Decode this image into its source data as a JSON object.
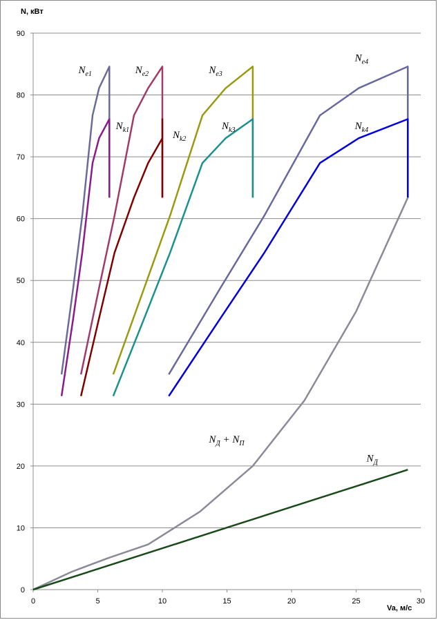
{
  "chart_data": {
    "type": "line",
    "ylabel": "N, кВт",
    "xlabel": "Va, м/с",
    "xlim": [
      0,
      30
    ],
    "ylim": [
      0,
      90
    ],
    "x_ticks": [
      "0",
      "5",
      "10",
      "15",
      "20",
      "25",
      "30"
    ],
    "y_ticks": [
      "0",
      "10",
      "20",
      "30",
      "40",
      "50",
      "60",
      "70",
      "80",
      "90"
    ],
    "grid": "horizontal",
    "series": [
      {
        "name": "Ne1",
        "color": "#6b6b9a",
        "points": [
          [
            2.2,
            34.8
          ],
          [
            3.1,
            48.8
          ],
          [
            3.8,
            60.5
          ],
          [
            4.6,
            76.7
          ],
          [
            5.1,
            81.1
          ],
          [
            5.9,
            84.6
          ],
          [
            5.9,
            63.4
          ]
        ]
      },
      {
        "name": "Nk1",
        "color": "#8b1a8b",
        "points": [
          [
            2.2,
            31.3
          ],
          [
            3.1,
            43.9
          ],
          [
            3.8,
            54.5
          ],
          [
            4.6,
            69.0
          ],
          [
            5.1,
            73.0
          ],
          [
            5.9,
            76.1
          ],
          [
            5.9,
            63.4
          ]
        ]
      },
      {
        "name": "Ne2",
        "color": "#a03a6a",
        "points": [
          [
            3.7,
            34.8
          ],
          [
            5.1,
            48.8
          ],
          [
            6.3,
            60.5
          ],
          [
            7.8,
            76.7
          ],
          [
            8.9,
            81.1
          ],
          [
            10.0,
            84.6
          ],
          [
            10.0,
            63.4
          ]
        ]
      },
      {
        "name": "Nk2",
        "color": "#800000",
        "points": [
          [
            3.7,
            31.3
          ],
          [
            5.1,
            43.9
          ],
          [
            6.3,
            54.5
          ],
          [
            7.8,
            63.4
          ],
          [
            8.9,
            69.0
          ],
          [
            10.0,
            73.0
          ],
          [
            10.0,
            76.1
          ],
          [
            10.0,
            63.4
          ]
        ]
      },
      {
        "name": "Ne3",
        "color": "#9a9a10",
        "points": [
          [
            6.2,
            34.8
          ],
          [
            8.6,
            48.8
          ],
          [
            10.6,
            60.5
          ],
          [
            13.1,
            76.7
          ],
          [
            14.9,
            81.1
          ],
          [
            17.0,
            84.6
          ],
          [
            17.0,
            63.4
          ]
        ]
      },
      {
        "name": "Nk3",
        "color": "#1a9090",
        "points": [
          [
            6.2,
            31.3
          ],
          [
            8.6,
            43.9
          ],
          [
            10.6,
            54.5
          ],
          [
            13.1,
            69.0
          ],
          [
            14.9,
            73.0
          ],
          [
            17.0,
            76.1
          ],
          [
            17.0,
            63.4
          ]
        ]
      },
      {
        "name": "Ne4",
        "color": "#6868a0",
        "points": [
          [
            10.5,
            34.8
          ],
          [
            14.5,
            48.8
          ],
          [
            17.9,
            60.5
          ],
          [
            22.2,
            76.7
          ],
          [
            25.2,
            81.1
          ],
          [
            29.0,
            84.6
          ],
          [
            29.0,
            63.4
          ]
        ]
      },
      {
        "name": "Nk4",
        "color": "#0000e0",
        "points": [
          [
            10.5,
            31.3
          ],
          [
            14.5,
            43.9
          ],
          [
            17.9,
            54.5
          ],
          [
            22.2,
            69.0
          ],
          [
            25.2,
            73.0
          ],
          [
            29.0,
            76.1
          ],
          [
            29.0,
            63.4
          ]
        ]
      },
      {
        "name": "NД + NП",
        "color": "#8a8a98",
        "points": [
          [
            0,
            0
          ],
          [
            3.0,
            2.9
          ],
          [
            5.8,
            5.1
          ],
          [
            8.9,
            7.3
          ],
          [
            12.9,
            12.6
          ],
          [
            17.0,
            20.0
          ],
          [
            21.0,
            30.6
          ],
          [
            25.0,
            45.0
          ],
          [
            29.0,
            63.4
          ]
        ]
      },
      {
        "name": "NД",
        "color": "#1a4a1a",
        "points": [
          [
            0,
            0
          ],
          [
            29.0,
            19.4
          ]
        ]
      }
    ],
    "labels": [
      {
        "base": "N",
        "sub": "e1",
        "x": 3.5,
        "y": 83.5
      },
      {
        "base": "N",
        "sub": "k1",
        "x": 6.4,
        "y": 74.5
      },
      {
        "base": "N",
        "sub": "e2",
        "x": 7.9,
        "y": 83.5
      },
      {
        "base": "N",
        "sub": "k2",
        "x": 10.8,
        "y": 73.0
      },
      {
        "base": "N",
        "sub": "e3",
        "x": 13.6,
        "y": 83.5
      },
      {
        "base": "N",
        "sub": "k3",
        "x": 14.6,
        "y": 74.5
      },
      {
        "base": "N",
        "sub": "e4",
        "x": 24.9,
        "y": 85.5
      },
      {
        "base": "N",
        "sub": "k4",
        "x": 24.9,
        "y": 74.5
      },
      {
        "base": "N",
        "sub": "Д",
        "tail": " + N",
        "tail_sub": "П",
        "x": 13.6,
        "y": 23.8
      },
      {
        "base": "N",
        "sub": "Д",
        "x": 25.8,
        "y": 20.7
      }
    ]
  }
}
